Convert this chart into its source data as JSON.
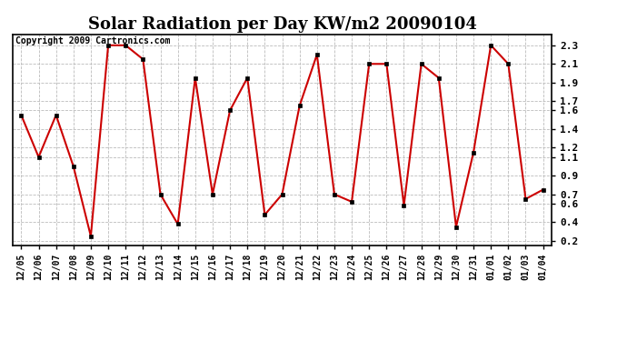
{
  "title": "Solar Radiation per Day KW/m2 20090104",
  "copyright": "Copyright 2009 Cartronics.com",
  "labels": [
    "12/05",
    "12/06",
    "12/07",
    "12/08",
    "12/09",
    "12/10",
    "12/11",
    "12/12",
    "12/13",
    "12/14",
    "12/15",
    "12/16",
    "12/17",
    "12/18",
    "12/19",
    "12/20",
    "12/21",
    "12/22",
    "12/23",
    "12/24",
    "12/25",
    "12/26",
    "12/27",
    "12/28",
    "12/29",
    "12/30",
    "12/31",
    "01/01",
    "01/02",
    "01/03",
    "01/04"
  ],
  "values": [
    1.55,
    1.1,
    1.55,
    1.0,
    0.25,
    2.3,
    2.3,
    2.15,
    0.7,
    0.38,
    1.95,
    0.7,
    1.6,
    1.95,
    0.48,
    0.7,
    1.65,
    2.2,
    0.7,
    0.62,
    2.1,
    2.1,
    0.58,
    2.1,
    1.95,
    0.35,
    1.15,
    2.3,
    2.1,
    0.65,
    0.75
  ],
  "line_color": "#cc0000",
  "marker_color": "#000000",
  "bg_color": "#ffffff",
  "grid_color": "#bbbbbb",
  "ylim_min": 0.15,
  "ylim_max": 2.42,
  "yticks": [
    0.2,
    0.4,
    0.6,
    0.7,
    0.9,
    1.1,
    1.2,
    1.4,
    1.6,
    1.7,
    1.9,
    2.1,
    2.3
  ],
  "title_fontsize": 13,
  "tick_fontsize": 7,
  "copyright_fontsize": 7
}
